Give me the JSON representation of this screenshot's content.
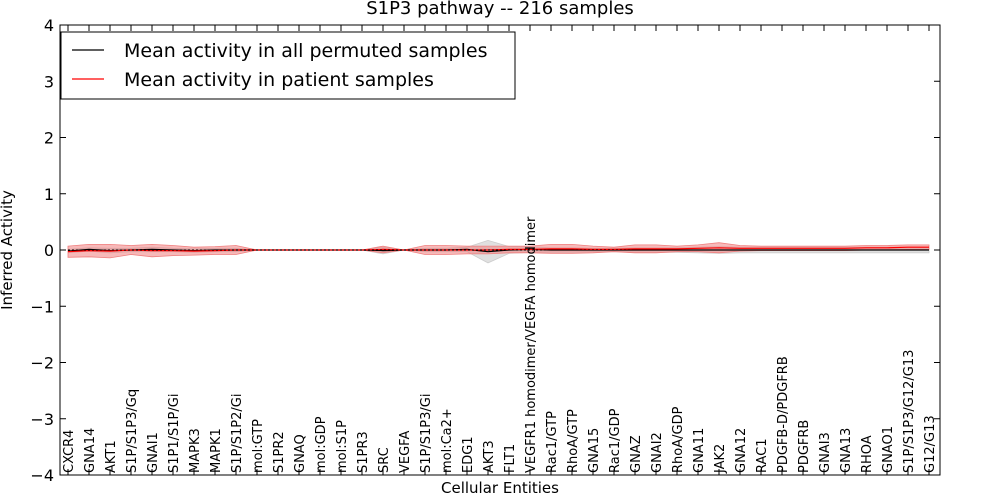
{
  "chart_data": {
    "type": "line",
    "title": "S1P3 pathway -- 216 samples",
    "xlabel": "Cellular Entities",
    "ylabel": "Inferred Activity",
    "ylim": [
      -4,
      4
    ],
    "yticks": [
      "−4",
      "−3",
      "−2",
      "−1",
      "0",
      "1",
      "2",
      "3",
      "4"
    ],
    "ytick_values": [
      -4,
      -3,
      -2,
      -1,
      0,
      1,
      2,
      3,
      4
    ],
    "legend_position": "top-left",
    "categories": [
      "CXCR4",
      "GNA14",
      "AKT1",
      "S1P/S1P3/Gq",
      "GNAI1",
      "S1P1/S1P/Gi",
      "MAPK3",
      "MAPK1",
      "S1P/S1P2/Gi",
      "mol:GTP",
      "S1PR2",
      "GNAQ",
      "mol:GDP",
      "mol:S1P",
      "S1PR3",
      "SRC",
      "VEGFA",
      "S1P/S1P3/Gi",
      "mol:Ca2+",
      "EDG1",
      "AKT3",
      "FLT1",
      "VEGFR1 homodimer/VEGFA homodimer",
      "Rac1/GTP",
      "RhoA/GTP",
      "GNA15",
      "Rac1/GDP",
      "GNAZ",
      "GNAI2",
      "RhoA/GDP",
      "GNA11",
      "JAK2",
      "GNA12",
      "RAC1",
      "PDGFB-D/PDGFRB",
      "PDGFRB",
      "GNAI3",
      "GNA13",
      "RHOA",
      "GNAO1",
      "S1P/S1P3/G12/G13",
      "G12/G13"
    ],
    "series": [
      {
        "name": "Mean activity in all permuted samples",
        "color": "#000000",
        "band_color": "#cccccc",
        "values": [
          -0.02,
          0.01,
          -0.01,
          0.0,
          0.01,
          0.0,
          -0.01,
          0.0,
          0.0,
          0.0,
          0.0,
          0.0,
          0.0,
          0.0,
          0.0,
          -0.01,
          0.0,
          0.0,
          0.0,
          0.01,
          -0.03,
          0.0,
          0.01,
          0.0,
          0.0,
          0.0,
          0.0,
          0.0,
          0.0,
          0.0,
          0.0,
          0.0,
          0.0,
          0.0,
          0.0,
          0.0,
          0.0,
          0.0,
          0.0,
          0.0,
          0.0,
          0.0
        ],
        "band": [
          0.03,
          0.03,
          0.04,
          0.03,
          0.04,
          0.03,
          0.03,
          0.03,
          0.03,
          0.0,
          0.0,
          0.0,
          0.0,
          0.0,
          0.0,
          0.06,
          0.0,
          0.03,
          0.03,
          0.04,
          0.2,
          0.06,
          0.05,
          0.04,
          0.04,
          0.03,
          0.03,
          0.04,
          0.04,
          0.04,
          0.05,
          0.06,
          0.05,
          0.05,
          0.05,
          0.05,
          0.05,
          0.05,
          0.05,
          0.05,
          0.05,
          0.05
        ]
      },
      {
        "name": "Mean activity in patient samples",
        "color": "#ff0000",
        "band_color": "#f08080",
        "values": [
          -0.03,
          -0.01,
          -0.02,
          0.0,
          -0.01,
          -0.01,
          -0.02,
          -0.01,
          0.0,
          0.0,
          0.0,
          0.0,
          0.0,
          0.0,
          0.0,
          0.01,
          0.0,
          0.0,
          0.0,
          0.0,
          0.0,
          0.01,
          0.01,
          0.02,
          0.02,
          0.01,
          0.01,
          0.02,
          0.02,
          0.02,
          0.03,
          0.04,
          0.03,
          0.03,
          0.03,
          0.03,
          0.03,
          0.03,
          0.04,
          0.04,
          0.05,
          0.05
        ],
        "band": [
          0.1,
          0.11,
          0.12,
          0.08,
          0.11,
          0.09,
          0.07,
          0.07,
          0.08,
          0.0,
          0.0,
          0.0,
          0.0,
          0.0,
          0.0,
          0.06,
          0.0,
          0.08,
          0.08,
          0.07,
          0.07,
          0.06,
          0.06,
          0.08,
          0.08,
          0.06,
          0.04,
          0.07,
          0.07,
          0.05,
          0.06,
          0.09,
          0.05,
          0.04,
          0.04,
          0.04,
          0.04,
          0.04,
          0.04,
          0.04,
          0.04,
          0.04
        ]
      }
    ]
  }
}
